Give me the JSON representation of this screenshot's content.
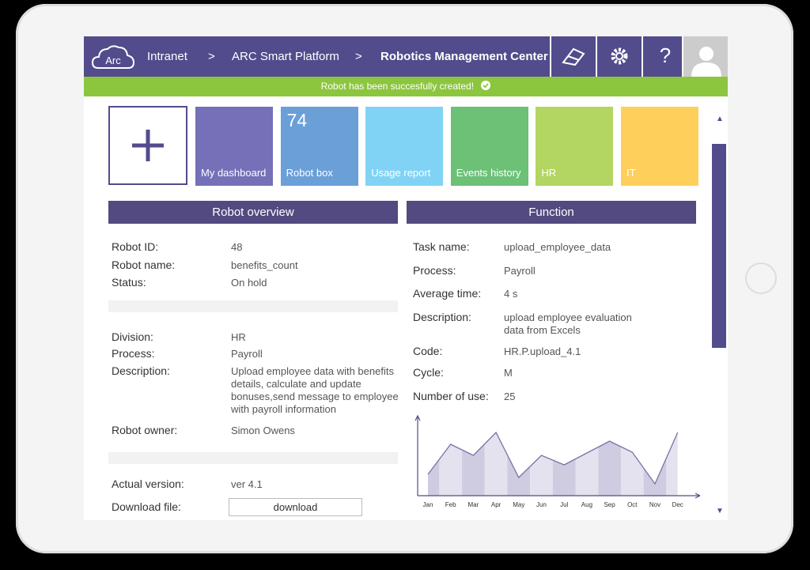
{
  "header": {
    "logo": "Arc",
    "breadcrumb": [
      "Intranet",
      "ARC Smart Platform",
      "Robotics Management Center"
    ],
    "separators": [
      ">",
      ">"
    ],
    "help": "?"
  },
  "notification": "Robot has been succesfully created!",
  "tiles": [
    {
      "label": "My dashboard",
      "color": "#7570b8"
    },
    {
      "label": "Robot box",
      "count": 74,
      "color": "#6a9fd8"
    },
    {
      "label": "Usage report",
      "color": "#81d3f5"
    },
    {
      "label": "Events history",
      "color": "#6cc177"
    },
    {
      "label": "HR",
      "color": "#b3d562"
    },
    {
      "label": "IT",
      "color": "#ffcf5c"
    }
  ],
  "overview": {
    "title": "Robot overview",
    "groups": [
      [
        [
          "Robot ID:",
          "48"
        ],
        [
          "Robot name:",
          "benefits_count"
        ],
        [
          "Status:",
          "On hold"
        ]
      ],
      [
        [
          "Division:",
          "HR"
        ],
        [
          "Process:",
          "Payroll"
        ],
        [
          "Description:",
          "Upload employee data with benefits details, calculate and update bonuses,send message to employee with payroll information"
        ],
        [
          "Robot owner:",
          "Simon Owens"
        ]
      ],
      [
        [
          "Actual version:",
          "ver 4.1"
        ],
        [
          "Download file:",
          "download"
        ]
      ]
    ]
  },
  "function": {
    "title": "Function",
    "fields": [
      [
        "Task name:",
        "upload_employee_data"
      ],
      [
        "Process:",
        "Payroll"
      ],
      [
        "Average time:",
        "4 s"
      ],
      [
        "Description:",
        "upload employee evaluation data from Excels"
      ],
      [
        "Code:",
        "HR.P.upload_4.1"
      ],
      [
        "Cycle:",
        "M"
      ],
      [
        "Number of use:",
        "25"
      ]
    ]
  },
  "chart_data": {
    "type": "area",
    "categories": [
      "Jan",
      "Feb",
      "Mar",
      "Apr",
      "May",
      "Jun",
      "Jul",
      "Aug",
      "Sep",
      "Oct",
      "Nov",
      "Dec"
    ],
    "values": [
      27,
      65,
      51,
      80,
      23,
      51,
      39,
      54,
      69,
      55,
      15,
      80
    ],
    "ylim": [
      0,
      100
    ],
    "color": "#7a70a8",
    "fills": [
      "#cfcbe0",
      "#e4e2ee"
    ]
  }
}
